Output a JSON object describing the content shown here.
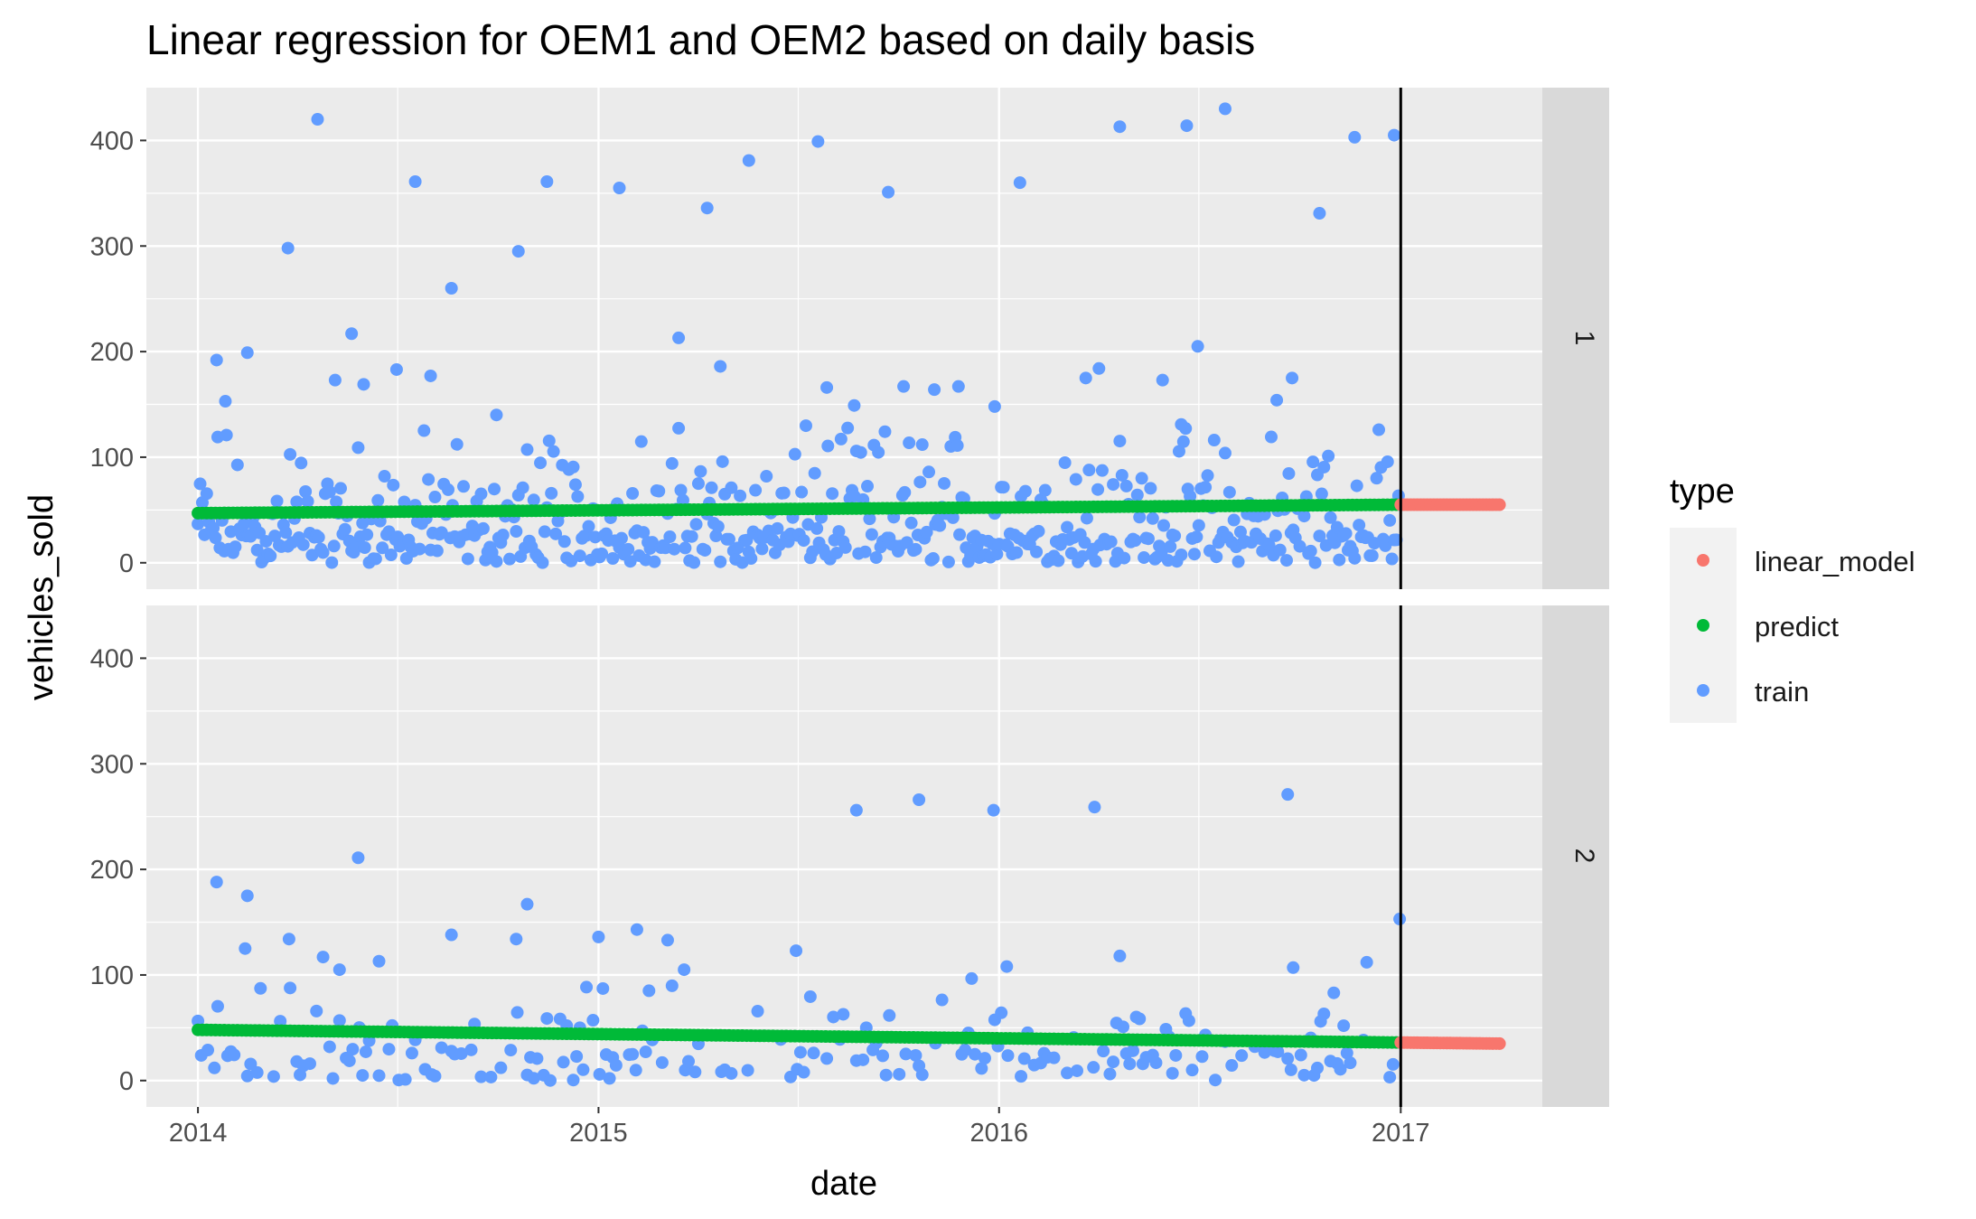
{
  "chart_data": {
    "type": "scatter",
    "title": "Linear regression for OEM1 and OEM2 based on daily basis",
    "xlabel": "date",
    "ylabel": "vehicles_sold",
    "x_ticks": [
      "2014",
      "2015",
      "2016",
      "2017"
    ],
    "y_ticks": [
      "0",
      "100",
      "200",
      "300",
      "400"
    ],
    "xlim": [
      "2013-11-15",
      "2017-05-10"
    ],
    "ylim": [
      -25,
      450
    ],
    "grid": true,
    "legend": {
      "title": "type",
      "position": "right",
      "entries": [
        {
          "label": "linear_model",
          "color": "#F8766D"
        },
        {
          "label": "predict",
          "color": "#00BA38"
        },
        {
          "label": "train",
          "color": "#619CFF"
        }
      ]
    },
    "vline_date": "2017-01-01",
    "panels": [
      {
        "strip_label": "1",
        "predict_line": {
          "x": [
            "2014-01-01",
            "2017-01-01"
          ],
          "y": [
            47,
            55
          ]
        },
        "linear_model": {
          "x": [
            "2017-01-01",
            "2017-04-01"
          ],
          "y": [
            55,
            55
          ]
        },
        "train_outliers": [
          {
            "x": "2014-01-18",
            "y": 192
          },
          {
            "x": "2014-01-26",
            "y": 153
          },
          {
            "x": "2014-02-15",
            "y": 199
          },
          {
            "x": "2014-03-24",
            "y": 298
          },
          {
            "x": "2014-04-20",
            "y": 420
          },
          {
            "x": "2014-05-21",
            "y": 217
          },
          {
            "x": "2014-05-06",
            "y": 173
          },
          {
            "x": "2014-06-01",
            "y": 169
          },
          {
            "x": "2014-07-01",
            "y": 183
          },
          {
            "x": "2014-07-18",
            "y": 361
          },
          {
            "x": "2014-08-01",
            "y": 177
          },
          {
            "x": "2014-08-20",
            "y": 260
          },
          {
            "x": "2014-10-20",
            "y": 295
          },
          {
            "x": "2014-11-15",
            "y": 361
          },
          {
            "x": "2015-01-20",
            "y": 355
          },
          {
            "x": "2015-03-15",
            "y": 213
          },
          {
            "x": "2015-04-10",
            "y": 336
          },
          {
            "x": "2015-04-22",
            "y": 186
          },
          {
            "x": "2015-05-18",
            "y": 381
          },
          {
            "x": "2015-07-20",
            "y": 399
          },
          {
            "x": "2015-07-28",
            "y": 166
          },
          {
            "x": "2015-08-22",
            "y": 149
          },
          {
            "x": "2015-09-22",
            "y": 351
          },
          {
            "x": "2015-10-06",
            "y": 167
          },
          {
            "x": "2015-11-03",
            "y": 164
          },
          {
            "x": "2015-11-25",
            "y": 167
          },
          {
            "x": "2015-12-28",
            "y": 148
          },
          {
            "x": "2016-01-20",
            "y": 360
          },
          {
            "x": "2016-03-20",
            "y": 175
          },
          {
            "x": "2016-04-01",
            "y": 184
          },
          {
            "x": "2016-04-20",
            "y": 413
          },
          {
            "x": "2016-05-29",
            "y": 173
          },
          {
            "x": "2016-06-20",
            "y": 414
          },
          {
            "x": "2016-06-30",
            "y": 205
          },
          {
            "x": "2016-07-25",
            "y": 430
          },
          {
            "x": "2016-09-10",
            "y": 154
          },
          {
            "x": "2016-09-24",
            "y": 175
          },
          {
            "x": "2016-10-19",
            "y": 331
          },
          {
            "x": "2016-11-20",
            "y": 403
          },
          {
            "x": "2016-12-26",
            "y": 405
          },
          {
            "x": "2016-06-15",
            "y": 131
          },
          {
            "x": "2014-09-30",
            "y": 140
          }
        ]
      },
      {
        "strip_label": "2",
        "predict_line": {
          "x": [
            "2014-01-01",
            "2017-01-01"
          ],
          "y": [
            48,
            36
          ]
        },
        "linear_model": {
          "x": [
            "2017-01-01",
            "2017-04-01"
          ],
          "y": [
            36,
            35
          ]
        },
        "train_outliers": [
          {
            "x": "2014-01-18",
            "y": 188
          },
          {
            "x": "2014-02-15",
            "y": 175
          },
          {
            "x": "2014-02-13",
            "y": 125
          },
          {
            "x": "2014-03-25",
            "y": 134
          },
          {
            "x": "2014-05-27",
            "y": 211
          },
          {
            "x": "2014-04-25",
            "y": 117
          },
          {
            "x": "2014-05-10",
            "y": 105
          },
          {
            "x": "2014-06-15",
            "y": 113
          },
          {
            "x": "2014-08-20",
            "y": 138
          },
          {
            "x": "2014-10-28",
            "y": 167
          },
          {
            "x": "2014-10-18",
            "y": 134
          },
          {
            "x": "2015-01-01",
            "y": 136
          },
          {
            "x": "2015-02-05",
            "y": 143
          },
          {
            "x": "2015-03-05",
            "y": 133
          },
          {
            "x": "2015-03-20",
            "y": 105
          },
          {
            "x": "2015-06-30",
            "y": 123
          },
          {
            "x": "2015-08-24",
            "y": 256
          },
          {
            "x": "2015-10-20",
            "y": 266
          },
          {
            "x": "2015-12-27",
            "y": 256
          },
          {
            "x": "2016-01-08",
            "y": 108
          },
          {
            "x": "2016-03-28",
            "y": 259
          },
          {
            "x": "2016-04-20",
            "y": 118
          },
          {
            "x": "2016-09-20",
            "y": 271
          },
          {
            "x": "2016-09-25",
            "y": 107
          },
          {
            "x": "2016-12-01",
            "y": 112
          },
          {
            "x": "2016-12-31",
            "y": 153
          }
        ]
      }
    ]
  }
}
